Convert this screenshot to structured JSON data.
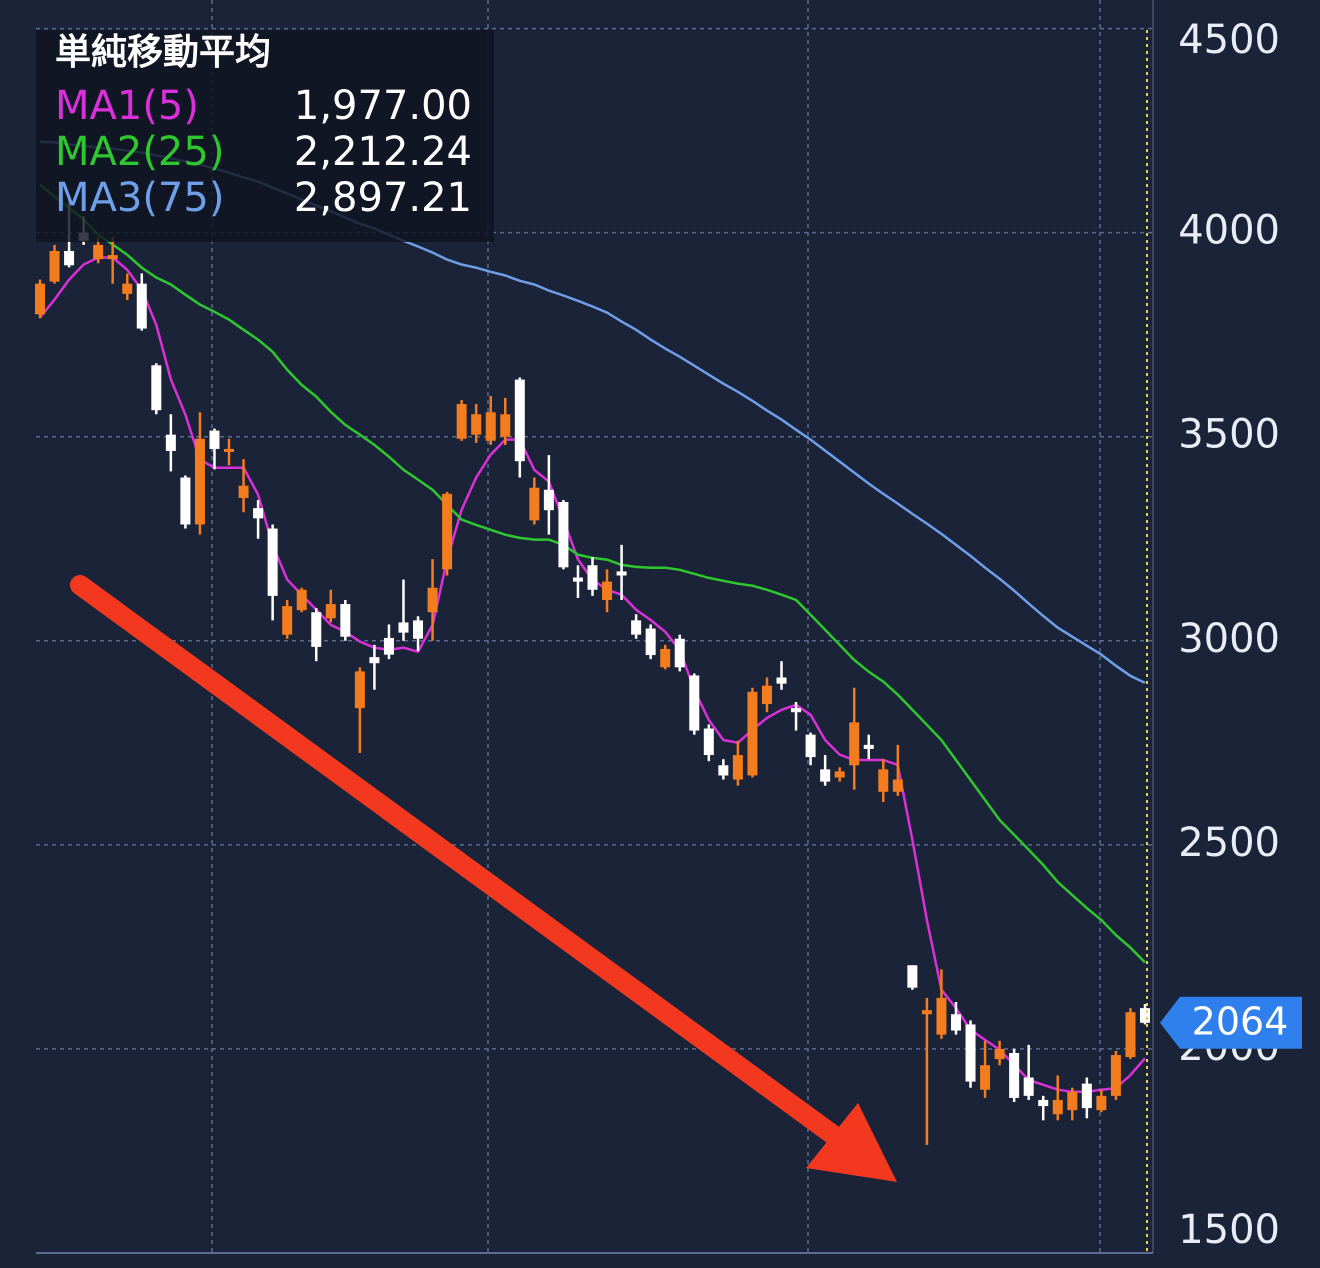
{
  "chart_data": {
    "type": "candlestick",
    "title": "単純移動平均",
    "categories": [
      null,
      null,
      null,
      null,
      null,
      null,
      null,
      null,
      null,
      null,
      null,
      null,
      null,
      null,
      null,
      null,
      null,
      null,
      null,
      null,
      null,
      null,
      null,
      null,
      null,
      null,
      null,
      null,
      null,
      null,
      null,
      null,
      null,
      null,
      null,
      null,
      null,
      null,
      null,
      null,
      null,
      null,
      null,
      null,
      null,
      null,
      null,
      null,
      null,
      null,
      null,
      null,
      null,
      null,
      null,
      null,
      null,
      null,
      null,
      null,
      null,
      null,
      null,
      null,
      null,
      null,
      null,
      null,
      null,
      null,
      null,
      null,
      null,
      null,
      null,
      null,
      null
    ],
    "open": [
      3800,
      3880,
      3955,
      4000,
      3935,
      3935,
      3850,
      3875,
      3675,
      3505,
      3400,
      3285,
      3515,
      3465,
      3350,
      3325,
      3275,
      3015,
      3075,
      3070,
      3055,
      3090,
      2835,
      2960,
      3007,
      3045,
      3050,
      3070,
      3175,
      3495,
      3505,
      3490,
      3500,
      3640,
      3295,
      3370,
      3340,
      3155,
      3185,
      3100,
      3170,
      3050,
      3030,
      2935,
      3005,
      2915,
      2785,
      2695,
      2660,
      2670,
      2845,
      2910,
      2835,
      2770,
      2685,
      2665,
      2695,
      2745,
      2630,
      2630,
      2205,
      2085,
      2035,
      2085,
      2060,
      1900,
      1975,
      1990,
      1930,
      1875,
      1840,
      1850,
      1915,
      1850,
      1885,
      1980,
      2100
    ],
    "high": [
      3885,
      3970,
      4080,
      4040,
      3990,
      3990,
      3900,
      3900,
      3680,
      3555,
      3405,
      3560,
      3520,
      3495,
      3445,
      3345,
      3285,
      3100,
      3130,
      3080,
      3125,
      3100,
      2935,
      2990,
      3040,
      3150,
      3060,
      3200,
      3365,
      3590,
      3580,
      3600,
      3595,
      3645,
      3400,
      3455,
      3345,
      3185,
      3205,
      3175,
      3235,
      3065,
      3040,
      2990,
      3015,
      2920,
      2795,
      2710,
      2755,
      2885,
      2910,
      2950,
      2850,
      2775,
      2720,
      2690,
      2885,
      2770,
      2710,
      2745,
      2205,
      2125,
      2195,
      2115,
      2070,
      2020,
      2020,
      2000,
      2010,
      1885,
      1935,
      1905,
      1930,
      1900,
      1995,
      2100,
      2110
    ],
    "low": [
      3790,
      3875,
      3915,
      3970,
      3925,
      3875,
      3835,
      3760,
      3555,
      3415,
      3275,
      3260,
      3420,
      3430,
      3315,
      3250,
      3050,
      3005,
      3070,
      2950,
      3045,
      3000,
      2725,
      2880,
      2955,
      3000,
      2975,
      3000,
      3160,
      3490,
      3485,
      3480,
      3480,
      3400,
      3285,
      3260,
      3175,
      3105,
      3110,
      3070,
      3100,
      3005,
      2955,
      2930,
      2925,
      2770,
      2705,
      2660,
      2645,
      2665,
      2825,
      2880,
      2780,
      2695,
      2645,
      2655,
      2635,
      2710,
      2605,
      2620,
      2145,
      1765,
      2025,
      2035,
      1905,
      1880,
      1960,
      1870,
      1875,
      1825,
      1825,
      1825,
      1830,
      1845,
      1875,
      1975,
      2060
    ],
    "close": [
      3875,
      3955,
      3920,
      3980,
      3970,
      3945,
      3875,
      3765,
      3565,
      3465,
      3285,
      3495,
      3470,
      3470,
      3380,
      3300,
      3110,
      3085,
      3125,
      2985,
      3090,
      3010,
      2925,
      2945,
      2966,
      3020,
      3005,
      3130,
      3360,
      3580,
      3555,
      3560,
      3555,
      3440,
      3375,
      3320,
      3180,
      3145,
      3125,
      3145,
      3160,
      3015,
      2965,
      2980,
      2935,
      2780,
      2720,
      2670,
      2720,
      2875,
      2890,
      2895,
      2825,
      2715,
      2655,
      2680,
      2800,
      2735,
      2685,
      2660,
      2150,
      2095,
      2125,
      2045,
      1920,
      1960,
      2000,
      1880,
      1885,
      1860,
      1875,
      1895,
      1855,
      1885,
      1985,
      2090,
      2064
    ],
    "up_color": "#f27c1e",
    "down_color": "#ffffff",
    "series": [
      {
        "name": "MA1(5)",
        "color": "#d930d9",
        "last_label": "1,977.00",
        "values": [
          3792,
          3836,
          3885,
          3922,
          3939,
          3939,
          3909,
          3860,
          3774,
          3640,
          3554,
          3444,
          3424,
          3424,
          3424,
          3358,
          3235,
          3150,
          3113,
          3076,
          3039,
          3022,
          2998,
          2983,
          2978,
          2983,
          2973,
          3039,
          3199,
          3321,
          3400,
          3456,
          3493,
          3493,
          3419,
          3390,
          3297,
          3199,
          3150,
          3125,
          3113,
          3076,
          3051,
          3022,
          2978,
          2880,
          2806,
          2757,
          2750,
          2782,
          2811,
          2831,
          2843,
          2819,
          2757,
          2721,
          2708,
          2708,
          2708,
          2696,
          2512,
          2316,
          2145,
          2100,
          2047,
          2022,
          1998,
          1961,
          1924,
          1912,
          1900,
          1895,
          1895,
          1900,
          1904,
          1936,
          1977
        ]
      },
      {
        "name": "MA2(25)",
        "color": "#2fc72f",
        "last_label": "2,212.24",
        "values": [
          4118,
          4088,
          4061,
          4032,
          3995,
          3971,
          3946,
          3914,
          3890,
          3873,
          3848,
          3824,
          3806,
          3787,
          3762,
          3738,
          3708,
          3664,
          3627,
          3598,
          3561,
          3529,
          3505,
          3480,
          3451,
          3419,
          3395,
          3370,
          3333,
          3297,
          3284,
          3272,
          3260,
          3252,
          3248,
          3248,
          3235,
          3211,
          3203,
          3199,
          3186,
          3181,
          3179,
          3179,
          3174,
          3164,
          3154,
          3147,
          3140,
          3135,
          3125,
          3113,
          3100,
          3064,
          3027,
          2990,
          2953,
          2924,
          2900,
          2868,
          2831,
          2794,
          2757,
          2708,
          2659,
          2610,
          2561,
          2525,
          2488,
          2451,
          2409,
          2377,
          2345,
          2316,
          2279,
          2248,
          2212
        ]
      },
      {
        "name": "MA3(75)",
        "color": "#6f9fe8",
        "last_label": "2,897.21",
        "values": [
          4223,
          4221,
          4216,
          4213,
          4208,
          4206,
          4201,
          4196,
          4189,
          4182,
          4174,
          4167,
          4157,
          4147,
          4135,
          4125,
          4110,
          4096,
          4081,
          4066,
          4052,
          4037,
          4022,
          4010,
          3995,
          3980,
          3966,
          3951,
          3934,
          3922,
          3914,
          3904,
          3895,
          3882,
          3873,
          3858,
          3846,
          3833,
          3819,
          3804,
          3782,
          3762,
          3738,
          3716,
          3696,
          3674,
          3652,
          3630,
          3610,
          3588,
          3564,
          3542,
          3517,
          3493,
          3466,
          3439,
          3412,
          3385,
          3360,
          3336,
          3311,
          3287,
          3262,
          3235,
          3208,
          3179,
          3152,
          3123,
          3091,
          3061,
          3032,
          3010,
          2988,
          2966,
          2939,
          2914,
          2897
        ]
      }
    ],
    "last_price": 2064,
    "tag_color": "#2f80ed",
    "ylim": [
      1500,
      4570
    ],
    "yticks": [
      1500,
      2000,
      2500,
      3000,
      3500,
      4000,
      4500
    ],
    "grid": true
  }
}
